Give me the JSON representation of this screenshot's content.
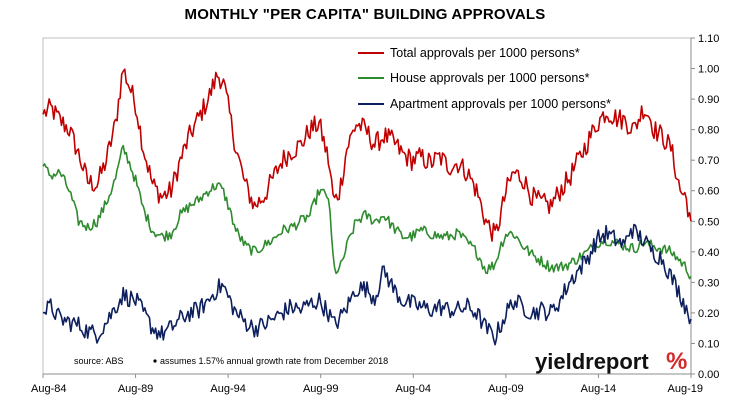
{
  "chart_data": {
    "type": "line",
    "title": "MONTHLY \"PER CAPITA\" BUILDING APPROVALS",
    "xlabel": "",
    "ylabel": "",
    "x_tick_labels": [
      "Aug-84",
      "Aug-89",
      "Aug-94",
      "Aug-99",
      "Aug-04",
      "Aug-09",
      "Aug-14",
      "Aug-19"
    ],
    "x_range": [
      1984.58,
      2019.58
    ],
    "y_tick_labels": [
      "0.00",
      "0.10",
      "0.20",
      "0.30",
      "0.40",
      "0.50",
      "0.60",
      "0.70",
      "0.80",
      "0.90",
      "1.00",
      "1.10"
    ],
    "ylim": [
      0,
      1.1
    ],
    "y_axis_side": "right",
    "grid": false,
    "legend_position": "top-center",
    "series": [
      {
        "name": "Total approvals per 1000 persons*",
        "color": "#c00000",
        "x": [
          1984.58,
          1985.0,
          1985.5,
          1986.0,
          1986.5,
          1987.0,
          1987.5,
          1988.0,
          1988.5,
          1988.9,
          1989.2,
          1989.6,
          1990.0,
          1990.5,
          1991.0,
          1991.5,
          1992.0,
          1992.5,
          1993.0,
          1993.5,
          1994.0,
          1994.3,
          1994.6,
          1995.0,
          1995.5,
          1996.0,
          1996.5,
          1997.0,
          1997.5,
          1998.0,
          1998.5,
          1999.0,
          1999.5,
          2000.0,
          2000.3,
          2000.6,
          2001.0,
          2001.5,
          2002.0,
          2002.5,
          2003.0,
          2003.5,
          2004.0,
          2004.5,
          2005.0,
          2005.5,
          2006.0,
          2006.5,
          2007.0,
          2007.5,
          2008.0,
          2008.5,
          2009.0,
          2009.3,
          2009.6,
          2010.0,
          2010.5,
          2011.0,
          2011.5,
          2012.0,
          2012.5,
          2013.0,
          2013.5,
          2014.0,
          2014.5,
          2015.0,
          2015.5,
          2016.0,
          2016.5,
          2017.0,
          2017.3,
          2017.6,
          2018.0,
          2018.5,
          2019.0,
          2019.3,
          2019.58
        ],
        "values": [
          0.85,
          0.87,
          0.83,
          0.8,
          0.72,
          0.63,
          0.62,
          0.7,
          0.82,
          1.0,
          0.95,
          0.88,
          0.74,
          0.62,
          0.58,
          0.6,
          0.7,
          0.78,
          0.84,
          0.9,
          0.98,
          0.96,
          0.87,
          0.74,
          0.62,
          0.55,
          0.58,
          0.64,
          0.7,
          0.73,
          0.75,
          0.8,
          0.82,
          0.7,
          0.56,
          0.6,
          0.74,
          0.82,
          0.8,
          0.75,
          0.78,
          0.76,
          0.72,
          0.7,
          0.71,
          0.69,
          0.71,
          0.68,
          0.69,
          0.66,
          0.6,
          0.5,
          0.45,
          0.52,
          0.6,
          0.66,
          0.64,
          0.58,
          0.56,
          0.55,
          0.6,
          0.64,
          0.7,
          0.76,
          0.82,
          0.86,
          0.84,
          0.83,
          0.8,
          0.87,
          0.85,
          0.8,
          0.78,
          0.74,
          0.6,
          0.58,
          0.5
        ]
      },
      {
        "name": "House approvals per 1000 persons*",
        "color": "#2e8b2e",
        "x": [
          1984.58,
          1985.0,
          1985.5,
          1986.0,
          1986.5,
          1987.0,
          1987.5,
          1988.0,
          1988.5,
          1988.9,
          1989.2,
          1989.6,
          1990.0,
          1990.5,
          1991.0,
          1991.5,
          1992.0,
          1992.5,
          1993.0,
          1993.5,
          1994.0,
          1994.3,
          1994.6,
          1995.0,
          1995.5,
          1996.0,
          1996.5,
          1997.0,
          1997.5,
          1998.0,
          1998.5,
          1999.0,
          1999.5,
          2000.0,
          2000.3,
          2000.6,
          2001.0,
          2001.5,
          2002.0,
          2002.5,
          2003.0,
          2003.5,
          2004.0,
          2004.5,
          2005.0,
          2005.5,
          2006.0,
          2006.5,
          2007.0,
          2007.5,
          2008.0,
          2008.5,
          2009.0,
          2009.3,
          2009.6,
          2010.0,
          2010.5,
          2011.0,
          2011.5,
          2012.0,
          2012.5,
          2013.0,
          2013.5,
          2014.0,
          2014.5,
          2015.0,
          2015.5,
          2016.0,
          2016.5,
          2017.0,
          2017.5,
          2018.0,
          2018.5,
          2019.0,
          2019.3,
          2019.58
        ],
        "values": [
          0.68,
          0.65,
          0.66,
          0.6,
          0.5,
          0.48,
          0.5,
          0.56,
          0.64,
          0.74,
          0.7,
          0.63,
          0.54,
          0.47,
          0.45,
          0.46,
          0.52,
          0.55,
          0.57,
          0.6,
          0.62,
          0.6,
          0.55,
          0.47,
          0.42,
          0.4,
          0.42,
          0.44,
          0.47,
          0.48,
          0.5,
          0.52,
          0.6,
          0.58,
          0.34,
          0.34,
          0.42,
          0.5,
          0.52,
          0.5,
          0.52,
          0.48,
          0.45,
          0.45,
          0.47,
          0.46,
          0.45,
          0.45,
          0.46,
          0.43,
          0.4,
          0.34,
          0.36,
          0.42,
          0.46,
          0.46,
          0.42,
          0.39,
          0.37,
          0.35,
          0.35,
          0.36,
          0.38,
          0.4,
          0.43,
          0.44,
          0.43,
          0.42,
          0.41,
          0.43,
          0.42,
          0.41,
          0.4,
          0.37,
          0.35,
          0.32
        ]
      },
      {
        "name": "Apartment approvals per 1000 persons*",
        "color": "#0d1f5c",
        "x": [
          1984.58,
          1985.0,
          1985.5,
          1986.0,
          1986.5,
          1987.0,
          1987.5,
          1988.0,
          1988.5,
          1988.9,
          1989.2,
          1989.6,
          1990.0,
          1990.5,
          1991.0,
          1991.5,
          1992.0,
          1992.5,
          1993.0,
          1993.5,
          1994.0,
          1994.3,
          1994.6,
          1995.0,
          1995.5,
          1996.0,
          1996.5,
          1997.0,
          1997.5,
          1998.0,
          1998.5,
          1999.0,
          1999.5,
          2000.0,
          2000.3,
          2000.6,
          2001.0,
          2001.5,
          2002.0,
          2002.5,
          2003.0,
          2003.5,
          2004.0,
          2004.5,
          2005.0,
          2005.5,
          2006.0,
          2006.5,
          2007.0,
          2007.5,
          2008.0,
          2008.5,
          2009.0,
          2009.3,
          2009.6,
          2010.0,
          2010.5,
          2011.0,
          2011.5,
          2012.0,
          2012.5,
          2013.0,
          2013.5,
          2014.0,
          2014.5,
          2015.0,
          2015.5,
          2016.0,
          2016.3,
          2016.6,
          2017.0,
          2017.5,
          2018.0,
          2018.5,
          2019.0,
          2019.3,
          2019.58
        ],
        "values": [
          0.2,
          0.22,
          0.18,
          0.17,
          0.16,
          0.14,
          0.13,
          0.17,
          0.22,
          0.26,
          0.25,
          0.24,
          0.2,
          0.15,
          0.13,
          0.15,
          0.18,
          0.2,
          0.21,
          0.24,
          0.28,
          0.29,
          0.25,
          0.2,
          0.17,
          0.15,
          0.16,
          0.18,
          0.2,
          0.22,
          0.21,
          0.23,
          0.24,
          0.2,
          0.16,
          0.18,
          0.22,
          0.28,
          0.28,
          0.25,
          0.34,
          0.28,
          0.24,
          0.23,
          0.22,
          0.21,
          0.22,
          0.21,
          0.21,
          0.22,
          0.2,
          0.15,
          0.12,
          0.16,
          0.2,
          0.24,
          0.22,
          0.2,
          0.21,
          0.2,
          0.24,
          0.3,
          0.34,
          0.38,
          0.44,
          0.46,
          0.44,
          0.42,
          0.48,
          0.46,
          0.44,
          0.4,
          0.38,
          0.32,
          0.26,
          0.22,
          0.18
        ]
      }
    ],
    "annotations": {
      "source": "source: ABS",
      "footnote": "assumes 1.57% annual growth rate from December 2018"
    }
  },
  "logo": {
    "text": "yieldreport",
    "pct": "%",
    "pct_color": "#d42a2a"
  }
}
